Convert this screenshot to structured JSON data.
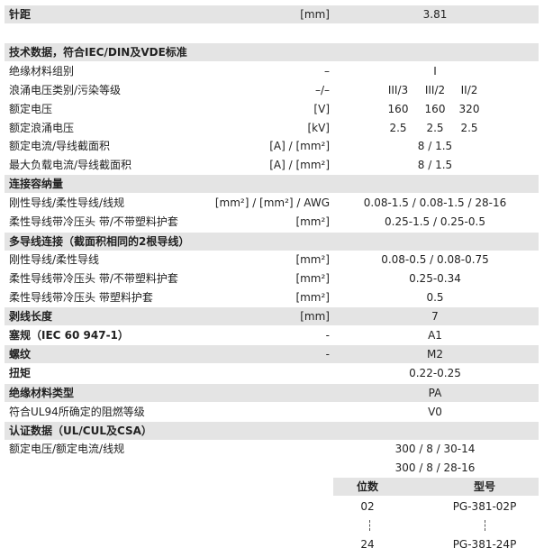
{
  "table": {
    "rows": [
      {
        "label": "针距",
        "unit": "[mm]",
        "value": "3.81"
      },
      {
        "label": "技术数据，符合IEC/DIN及VDE标准"
      },
      {
        "label": "绝缘材料组别",
        "unit": "–",
        "value": "I"
      },
      {
        "label": "浪涌电压类别/污染等级",
        "unit": "–/–",
        "values": [
          "III/3",
          "III/2",
          "II/2"
        ]
      },
      {
        "label": "额定电压",
        "unit": "[V]",
        "values": [
          "160",
          "160",
          "320"
        ]
      },
      {
        "label": "额定浪涌电压",
        "unit": "[kV]",
        "values": [
          "2.5",
          "2.5",
          "2.5"
        ]
      },
      {
        "label": "额定电流/导线截面积",
        "unit": "[A] / [mm²]",
        "value": "8 / 1.5"
      },
      {
        "label": "最大负载电流/导线截面积",
        "unit": "[A] / [mm²]",
        "value": "8 / 1.5"
      },
      {
        "label": "连接容纳量"
      },
      {
        "label": "刚性导线/柔性导线/线规",
        "unit": "[mm²] / [mm²] / AWG",
        "value": "0.08-1.5 / 0.08-1.5 / 28-16"
      },
      {
        "label": "柔性导线带冷压头 带/不带塑料护套",
        "unit": "[mm²]",
        "value": "0.25-1.5 / 0.25-0.5"
      },
      {
        "label": "多导线连接（截面积相同的2根导线）"
      },
      {
        "label": "刚性导线/柔性导线",
        "unit": "[mm²]",
        "value": "0.08-0.5 / 0.08-0.75"
      },
      {
        "label": "柔性导线带冷压头 带/不带塑料护套",
        "unit": "[mm²]",
        "value": "0.25-0.34"
      },
      {
        "label": "柔性导线带冷压头 带塑料护套",
        "unit": "[mm²]",
        "value": "0.5"
      },
      {
        "label": "剥线长度",
        "unit": "[mm]",
        "value": "7"
      },
      {
        "label": "塞规（IEC 60 947-1）",
        "unit": "-",
        "value": "A1"
      },
      {
        "label": "螺纹",
        "unit": "-",
        "value": "M2"
      },
      {
        "label": "扭矩",
        "value": "0.22-0.25"
      },
      {
        "label": "绝缘材料类型",
        "value": "PA"
      },
      {
        "label": "符合UL94所确定的阻燃等级",
        "value": "V0"
      },
      {
        "label": "认证数据（UL/CUL及CSA）"
      },
      {
        "label": "额定电压/额定电流/线规",
        "value": "300 / 8 / 30-14"
      },
      {
        "value": "300 / 8 / 28-16"
      }
    ]
  },
  "models": {
    "header": [
      "位数",
      "型号"
    ],
    "rows": [
      [
        "02",
        "PG-381-02P"
      ],
      [
        "24",
        "PG-381-24P"
      ]
    ]
  }
}
